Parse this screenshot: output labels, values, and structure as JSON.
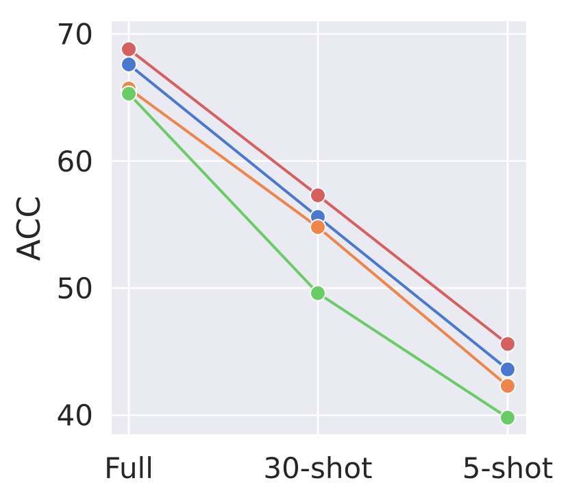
{
  "chart_data": {
    "type": "line",
    "title": "",
    "xlabel": "",
    "ylabel": "ACC",
    "categories": [
      "Full",
      "30-shot",
      "5-shot"
    ],
    "yticks": [
      "40",
      "50",
      "60",
      "70"
    ],
    "ylim": [
      38.5,
      71
    ],
    "grid": true,
    "legend": "none",
    "background_color": "#eaeaf2",
    "grid_color": "#ffffff",
    "series": [
      {
        "color": "#d65f5f",
        "values": [
          68.8,
          57.3,
          45.6
        ]
      },
      {
        "color": "#4878d0",
        "values": [
          67.6,
          55.6,
          43.6
        ]
      },
      {
        "color": "#ee854a",
        "values": [
          65.7,
          54.8,
          42.3
        ]
      },
      {
        "color": "#6acc64",
        "values": [
          65.3,
          49.6,
          39.8
        ]
      }
    ]
  }
}
